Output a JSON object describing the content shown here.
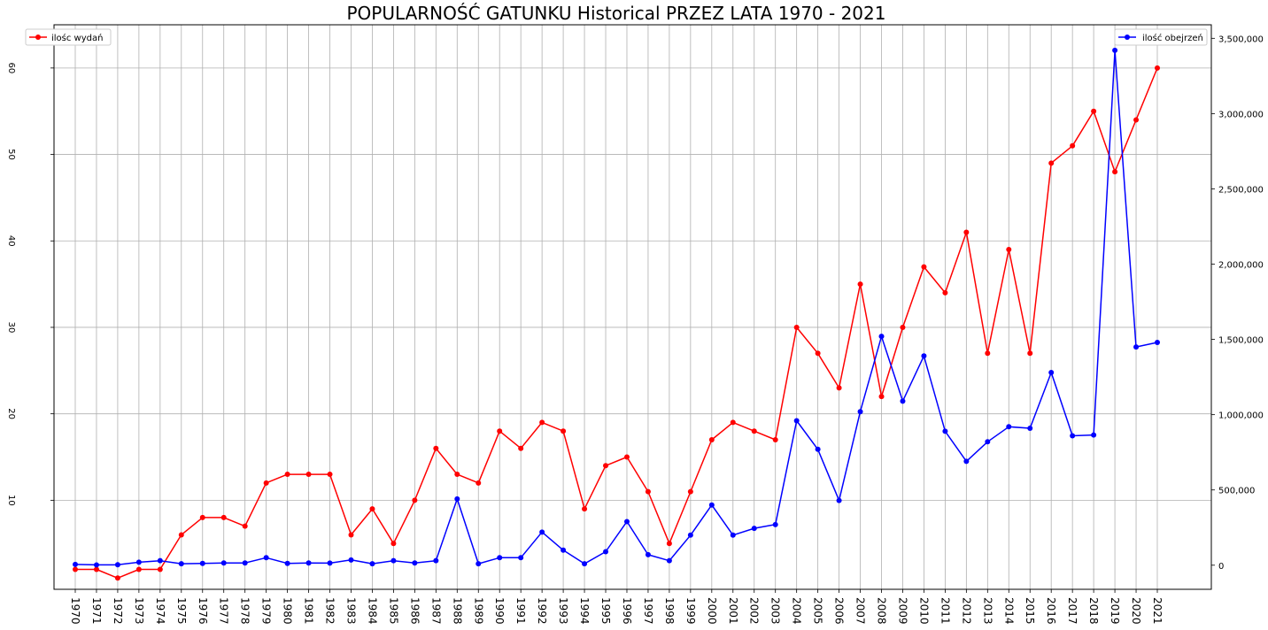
{
  "chart_data": {
    "type": "line",
    "title": "POPULARNOŚĆ GATUNKU Historical PRZEZ LATA 1970 - 2021",
    "xlabel": "",
    "ylabel": "",
    "x": [
      "1970",
      "1971",
      "1972",
      "1973",
      "1974",
      "1975",
      "1976",
      "1977",
      "1978",
      "1979",
      "1980",
      "1981",
      "1982",
      "1983",
      "1984",
      "1985",
      "1986",
      "1987",
      "1988",
      "1989",
      "1990",
      "1991",
      "1992",
      "1993",
      "1994",
      "1995",
      "1996",
      "1997",
      "1998",
      "1999",
      "2000",
      "2001",
      "2002",
      "2003",
      "2004",
      "2005",
      "2006",
      "2007",
      "2008",
      "2009",
      "2010",
      "2011",
      "2012",
      "2013",
      "2014",
      "2015",
      "2016",
      "2017",
      "2018",
      "2019",
      "2020",
      "2021"
    ],
    "left_axis": {
      "ylim": [
        -0.3,
        65
      ],
      "ticks": [
        "10",
        "20",
        "30",
        "40",
        "50",
        "60"
      ]
    },
    "right_axis": {
      "ylim": [
        -160000,
        3590000
      ],
      "ticks": [
        "0",
        "500,000",
        "1,000,000",
        "1,500,000",
        "2,000,000",
        "2,500,000",
        "3,000,000",
        "3,500,000"
      ]
    },
    "grid": true,
    "series": [
      {
        "name": "ilośc wydań",
        "axis": "left",
        "color": "#ff0000",
        "legend_position": "top-left",
        "values": [
          2,
          2,
          1,
          2,
          2,
          6,
          8,
          8,
          7,
          12,
          13,
          13,
          13,
          6,
          9,
          5,
          10,
          16,
          13,
          12,
          18,
          16,
          19,
          18,
          9,
          14,
          15,
          11,
          5,
          11,
          17,
          19,
          18,
          17,
          30,
          27,
          23,
          35,
          22,
          30,
          37,
          34,
          41,
          27,
          39,
          27,
          49,
          51,
          55,
          48,
          54,
          60
        ]
      },
      {
        "name": "ilość obejrzeń",
        "axis": "right",
        "color": "#0000ff",
        "legend_position": "top-right",
        "values": [
          5000,
          2000,
          3000,
          20000,
          30000,
          10000,
          12000,
          15000,
          15000,
          50000,
          12000,
          15000,
          14000,
          35000,
          10000,
          30000,
          15000,
          30000,
          440000,
          10000,
          50000,
          50000,
          220000,
          100000,
          10000,
          90000,
          290000,
          70000,
          30000,
          200000,
          400000,
          200000,
          245000,
          270000,
          960000,
          770000,
          430000,
          1020000,
          1520000,
          1090000,
          1390000,
          890000,
          690000,
          820000,
          920000,
          910000,
          1280000,
          860000,
          865000,
          3420000,
          1450000,
          1480000
        ]
      }
    ]
  }
}
